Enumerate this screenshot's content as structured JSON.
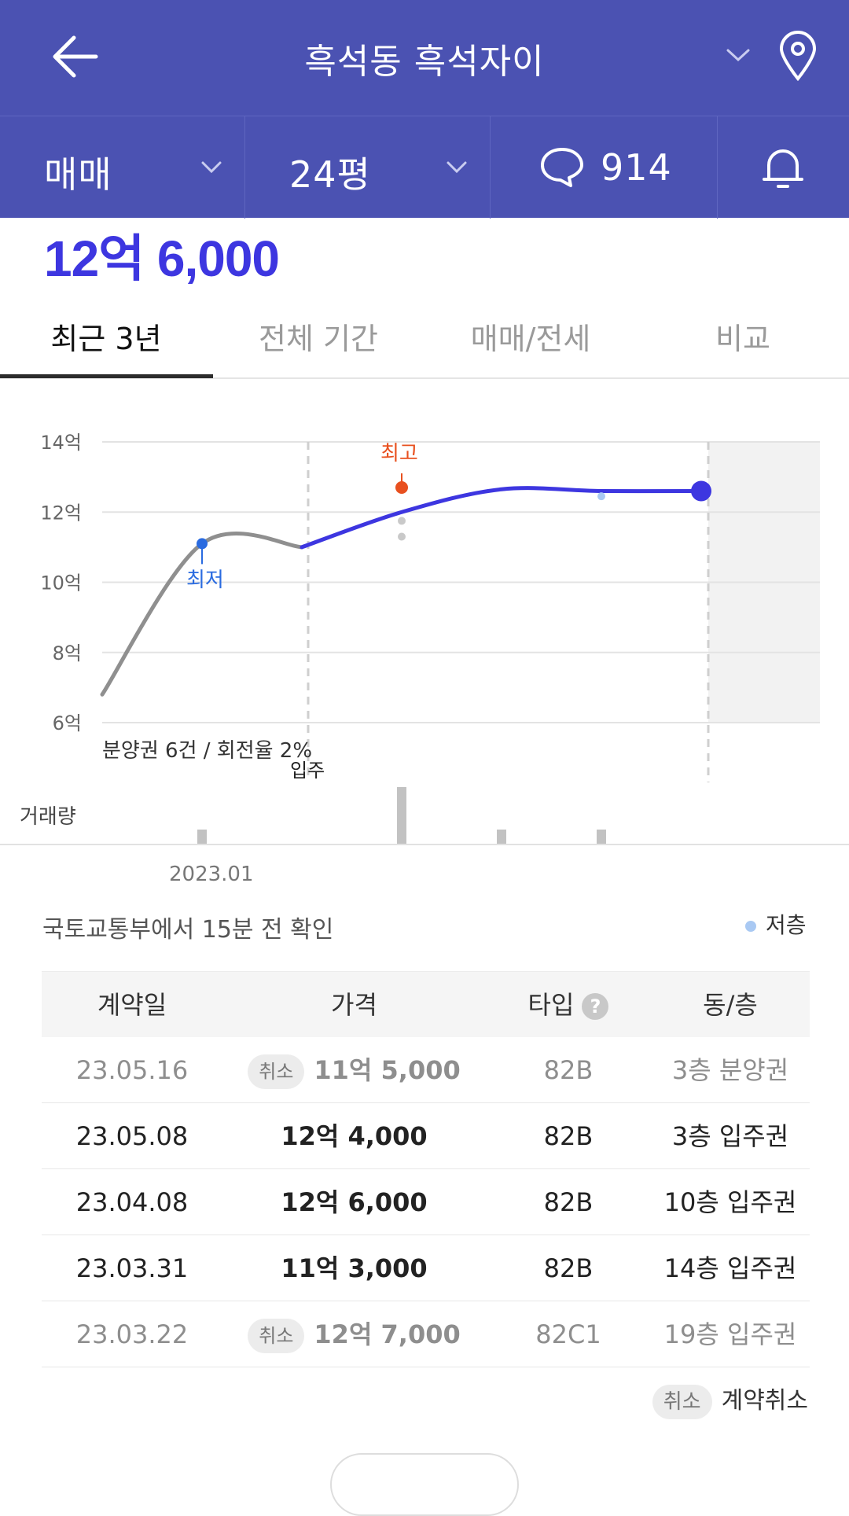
{
  "header": {
    "title": "흑석동 흑석자이",
    "colors": {
      "bar": "#4b52b2",
      "accent": "#3d36e0"
    }
  },
  "subbar": {
    "trade_type": "매매",
    "area": "24평",
    "comment_count": "914"
  },
  "summary": {
    "price": "12억 6,000"
  },
  "tabs": [
    {
      "label": "최근 3년",
      "active": true
    },
    {
      "label": "전체 기간",
      "active": false
    },
    {
      "label": "매매/전세",
      "active": false
    },
    {
      "label": "비교",
      "active": false
    }
  ],
  "chart": {
    "note": "분양권 6건 / 회전율 2%",
    "move_in_label": "입주",
    "high_label": "최고",
    "low_label": "최저",
    "volume_label": "거래량",
    "date_label": "2023.01"
  },
  "chart_data": {
    "type": "line",
    "y_ticks": [
      "14억",
      "12억",
      "10억",
      "8억",
      "6억"
    ],
    "ylim": [
      6,
      14
    ],
    "grid": true,
    "series": [
      {
        "points": [
          [
            0,
            6.8
          ],
          [
            1.0,
            11.1
          ],
          [
            2.0,
            11.0
          ],
          [
            3.0,
            12.0
          ],
          [
            4.0,
            12.65
          ],
          [
            5.0,
            12.6
          ],
          [
            6.0,
            12.6
          ]
        ]
      }
    ],
    "trade_dots": [
      {
        "x": 3.0,
        "y": 11.75
      },
      {
        "x": 3.0,
        "y": 11.3
      },
      {
        "x": 5.0,
        "y": 12.45
      }
    ],
    "high_point": {
      "x": 3.0,
      "y": 12.7
    },
    "low_point": {
      "x": 1.0,
      "y": 11.1
    },
    "current_point": {
      "x": 6.0,
      "y": 12.6
    },
    "volume": [
      {
        "x": 1.0,
        "v": 1
      },
      {
        "x": 3.0,
        "v": 4
      },
      {
        "x": 4.0,
        "v": 1
      },
      {
        "x": 5.0,
        "v": 1
      }
    ]
  },
  "source_text": "국토교통부에서 15분 전 확인",
  "legend": {
    "low_floor": "저층"
  },
  "table": {
    "headers": {
      "date": "계약일",
      "price": "가격",
      "type": "타입",
      "unit": "동/층"
    },
    "help_glyph": "?",
    "rows": [
      {
        "date": "23.05.16",
        "price": "11억 5,000",
        "type": "82B",
        "unit": "3층 분양권",
        "cancelled": true,
        "badge": "취소"
      },
      {
        "date": "23.05.08",
        "price": "12억 4,000",
        "type": "82B",
        "unit": "3층 입주권",
        "cancelled": false,
        "badge": ""
      },
      {
        "date": "23.04.08",
        "price": "12억 6,000",
        "type": "82B",
        "unit": "10층 입주권",
        "cancelled": false,
        "badge": ""
      },
      {
        "date": "23.03.31",
        "price": "11억 3,000",
        "type": "82B",
        "unit": "14층 입주권",
        "cancelled": false,
        "badge": ""
      },
      {
        "date": "23.03.22",
        "price": "12억 7,000",
        "type": "82C1",
        "unit": "19층 입주권",
        "cancelled": true,
        "badge": "취소"
      }
    ]
  },
  "cancel_legend": {
    "badge": "취소",
    "text": "계약취소"
  }
}
